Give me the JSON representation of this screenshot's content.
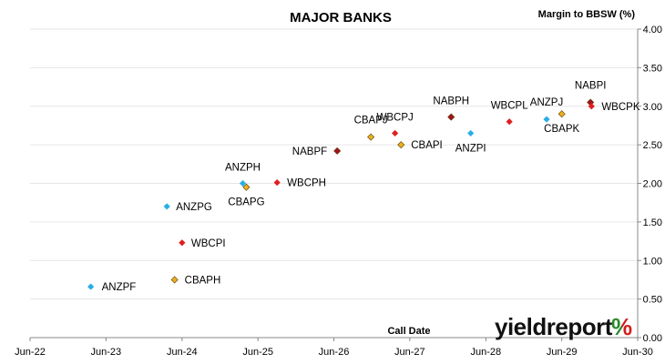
{
  "chart_data": {
    "type": "scatter",
    "title": "MAJOR BANKS",
    "ylabel": "Margin to BBSW (%)",
    "xlabel": "Call Date",
    "ylim": [
      0,
      4
    ],
    "yticks": [
      "0.00",
      "0.50",
      "1.00",
      "1.50",
      "2.00",
      "2.50",
      "3.00",
      "3.50",
      "4.00"
    ],
    "xlim": [
      "2022-06-01",
      "2030-06-01"
    ],
    "xticks": [
      "Jun-22",
      "Jun-23",
      "Jun-24",
      "Jun-25",
      "Jun-26",
      "Jun-27",
      "Jun-28",
      "Jun-29",
      "Jun-30"
    ],
    "grid": "horizontal",
    "legend": "none",
    "series": [
      {
        "name": "ANZ",
        "color": "#29aee6",
        "points": [
          {
            "label": "ANZPF",
            "date": "2023-03-20",
            "value": 0.66
          },
          {
            "label": "ANZPG",
            "date": "2024-03-20",
            "value": 1.7
          },
          {
            "label": "ANZPH",
            "date": "2025-03-20",
            "value": 2.0
          },
          {
            "label": "ANZPI",
            "date": "2028-03-20",
            "value": 2.65
          },
          {
            "label": "ANZPJ",
            "date": "2029-03-20",
            "value": 2.83
          }
        ]
      },
      {
        "name": "CBA",
        "color": "#e8b020",
        "points": [
          {
            "label": "CBAPH",
            "date": "2024-04-26",
            "value": 0.75
          },
          {
            "label": "CBAPG",
            "date": "2025-04-06",
            "value": 1.95
          },
          {
            "label": "CBAPJ",
            "date": "2026-11-26",
            "value": 2.6
          },
          {
            "label": "CBAPI",
            "date": "2027-04-20",
            "value": 2.5
          },
          {
            "label": "CBAPK",
            "date": "2029-06-01",
            "value": 2.9
          }
        ]
      },
      {
        "name": "NAB",
        "color": "#a3121e",
        "points": [
          {
            "label": "NABPF",
            "date": "2026-06-17",
            "value": 2.42
          },
          {
            "label": "NABPH",
            "date": "2027-12-17",
            "value": 2.86
          },
          {
            "label": "NABPI",
            "date": "2029-10-17",
            "value": 3.05
          }
        ]
      },
      {
        "name": "WBC",
        "color": "#e01e1e",
        "points": [
          {
            "label": "WBCPI",
            "date": "2024-06-01",
            "value": 1.23
          },
          {
            "label": "WBCPH",
            "date": "2025-09-01",
            "value": 2.01
          },
          {
            "label": "WBCPJ",
            "date": "2027-03-22",
            "value": 2.65
          },
          {
            "label": "WBCPL",
            "date": "2028-09-22",
            "value": 2.8
          },
          {
            "label": "WBCPK",
            "date": "2029-10-22",
            "value": 3.0
          }
        ]
      }
    ]
  },
  "branding": {
    "logo_text": "yieldreport",
    "logo_symbol": "%",
    "logo_colors": {
      "green": "#2a8a2a",
      "red": "#d21f1f",
      "text": "#111111"
    }
  }
}
